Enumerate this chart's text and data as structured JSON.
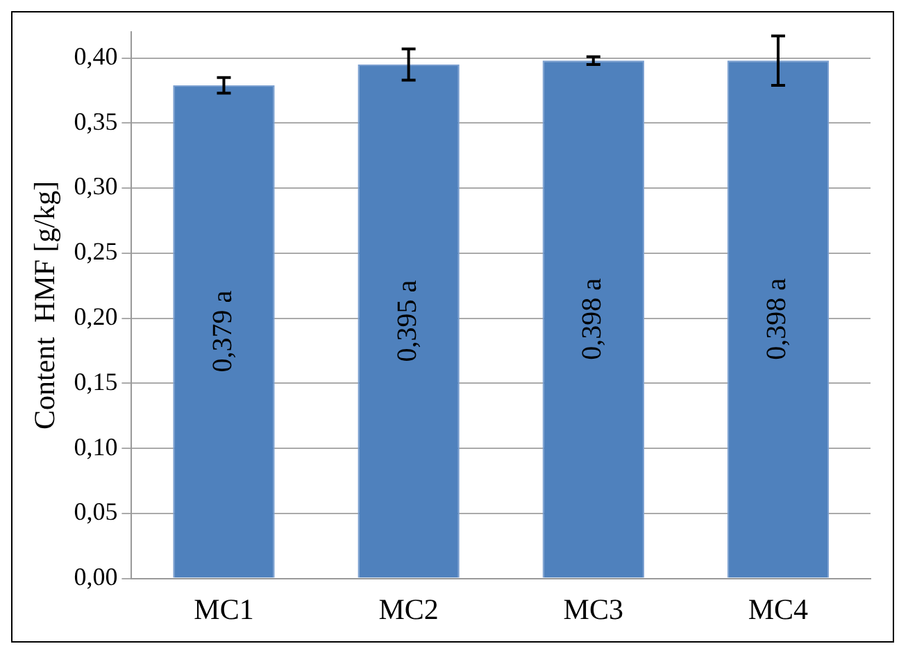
{
  "chart_data": {
    "type": "bar",
    "ylabel": "Content  HMF [g/kg]",
    "categories": [
      "MC1",
      "MC2",
      "MC3",
      "MC4"
    ],
    "values": [
      0.379,
      0.395,
      0.398,
      0.398
    ],
    "errors": [
      0.006,
      0.012,
      0.003,
      0.019
    ],
    "value_labels": [
      "0,379 a",
      "0,395 a",
      "0,398 a",
      "0,398 a"
    ],
    "color": "#4f81bd",
    "ylim": [
      0,
      0.42
    ],
    "yticks": [
      {
        "value": 0,
        "label": "0,00"
      },
      {
        "value": 0.05,
        "label": "0,05"
      },
      {
        "value": 0.1,
        "label": "0,10"
      },
      {
        "value": 0.15,
        "label": "0,15"
      },
      {
        "value": 0.2,
        "label": "0,20"
      },
      {
        "value": 0.25,
        "label": "0,25"
      },
      {
        "value": 0.3,
        "label": "0,30"
      },
      {
        "value": 0.35,
        "label": "0,35"
      },
      {
        "value": 0.4,
        "label": "0,40"
      }
    ],
    "grid": "y"
  }
}
